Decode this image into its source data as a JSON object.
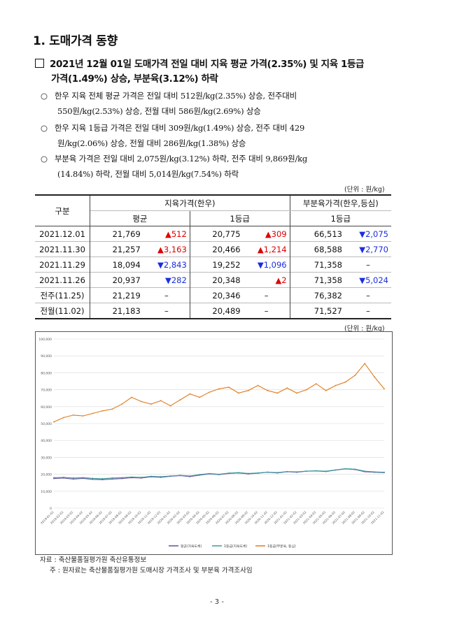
{
  "section_title": "1. 도매가격 동향",
  "headline": {
    "line1": "2021년 12월 01일 도매가격 전일 대비 지육 평균 가격(2.35%) 및 지육 1등급",
    "line2": "가격(1.49%) 상승, 부분육(3.12%) 하락"
  },
  "bullets": [
    {
      "mark": "○",
      "line1": "한우 지육 전체 평균 가격은 전일 대비 512원/kg(2.35%) 상승, 전주대비",
      "line2": "550원/kg(2.53%) 상승, 전월 대비 586원/kg(2.69%) 상승"
    },
    {
      "mark": "○",
      "line1": "한우 지육 1등급 가격은 전일 대비 309원/kg(1.49%) 상승, 전주 대비 429",
      "line2": "원/kg(2.06%) 상승, 전월 대비 286원/kg(1.38%) 상승"
    },
    {
      "mark": "○",
      "line1": "부분육 가격은 전일 대비 2,075원/kg(3.12%) 하락, 전주 대비 9,869원/kg",
      "line2": "(14.84%) 하락, 전월 대비 5,014원/kg(7.54%) 하락"
    }
  ],
  "table_unit": "(단위 : 원/kg)",
  "table": {
    "col_group": "구분",
    "group1": "지육가격(한우)",
    "group2": "부분육가격(한우,등심)",
    "sub1": "평균",
    "sub2": "1등급",
    "sub3": "1등급",
    "rows": [
      {
        "label": "2021.12.01",
        "avg": "21,769",
        "avg_chg": "▲512",
        "avg_dir": "up",
        "g1": "20,775",
        "g1_chg": "▲309",
        "g1_dir": "up",
        "part": "66,513",
        "part_chg": "▼2,075",
        "part_dir": "dn"
      },
      {
        "label": "2021.11.30",
        "avg": "21,257",
        "avg_chg": "▲3,163",
        "avg_dir": "up",
        "g1": "20,466",
        "g1_chg": "▲1,214",
        "g1_dir": "up",
        "part": "68,588",
        "part_chg": "▼2,770",
        "part_dir": "dn"
      },
      {
        "label": "2021.11.29",
        "avg": "18,094",
        "avg_chg": "▼2,843",
        "avg_dir": "dn",
        "g1": "19,252",
        "g1_chg": "▼1,096",
        "g1_dir": "dn",
        "part": "71,358",
        "part_chg": "–",
        "part_dir": "none"
      },
      {
        "label": "2021.11.26",
        "avg": "20,937",
        "avg_chg": "▼282",
        "avg_dir": "dn",
        "g1": "20,348",
        "g1_chg": "▲2",
        "g1_dir": "up",
        "part": "71,358",
        "part_chg": "▼5,024",
        "part_dir": "dn"
      },
      {
        "label": "전주(11.25)",
        "avg": "21,219",
        "avg_chg": "–",
        "avg_dir": "none",
        "g1": "20,346",
        "g1_chg": "–",
        "g1_dir": "none",
        "part": "76,382",
        "part_chg": "–",
        "part_dir": "none"
      },
      {
        "label": "전월(11.02)",
        "avg": "21,183",
        "avg_chg": "–",
        "avg_dir": "none",
        "g1": "20,489",
        "g1_chg": "–",
        "g1_dir": "none",
        "part": "71,527",
        "part_chg": "–",
        "part_dir": "none"
      }
    ]
  },
  "chart_unit": "(단위 : 원/kg)",
  "chart_data": {
    "type": "line",
    "ylim": [
      0,
      100000
    ],
    "yticks": [
      "0",
      "10,000",
      "20,000",
      "30,000",
      "40,000",
      "50,000",
      "60,000",
      "70,000",
      "80,000",
      "90,000",
      "100,000"
    ],
    "xticks": [
      "2019-01-02",
      "2019-02-02",
      "2019-03-02",
      "2019-04-02",
      "2019-05-02",
      "2019-06-02",
      "2019-07-02",
      "2019-08-02",
      "2019-09-02",
      "2019-10-02",
      "2019-11-02",
      "2019-12-02",
      "2020-01-02",
      "2020-02-02",
      "2020-03-02",
      "2020-04-02",
      "2020-05-02",
      "2020-06-02",
      "2020-07-02",
      "2020-08-02",
      "2020-09-02",
      "2020-10-02",
      "2020-11-02",
      "2020-12-02",
      "2021-01-02",
      "2021-02-02",
      "2021-03-02",
      "2021-04-02",
      "2021-05-02",
      "2021-06-02",
      "2021-07-02",
      "2021-08-02",
      "2021-09-02",
      "2021-10-02",
      "2021-11-02"
    ],
    "grid": true,
    "legend_position": "bottom",
    "series": [
      {
        "name": "평균(지육도체)",
        "color": "#6a4c9c",
        "values": [
          17500,
          17800,
          17200,
          17600,
          17000,
          16800,
          17200,
          17500,
          18000,
          17800,
          18500,
          18200,
          18800,
          19200,
          18600,
          19500,
          20200,
          19800,
          20500,
          20800,
          20200,
          20600,
          21200,
          20800,
          21500,
          21200,
          21800,
          22000,
          21600,
          22500,
          23200,
          22800,
          21500,
          21200,
          21000
        ]
      },
      {
        "name": "1등급(지육도체)",
        "color": "#3c9c9c",
        "values": [
          18000,
          18200,
          17800,
          18000,
          17600,
          17400,
          17800,
          18000,
          18400,
          18200,
          18800,
          18600,
          19000,
          19400,
          19000,
          19800,
          20400,
          20000,
          20700,
          21000,
          20500,
          20800,
          21300,
          21000,
          21600,
          21400,
          21900,
          22100,
          21800,
          22600,
          23300,
          23000,
          21800,
          21400,
          21200
        ]
      },
      {
        "name": "1등급(부분육, 등심)",
        "color": "#e07b1f",
        "values": [
          51000,
          53500,
          55000,
          54500,
          56000,
          57500,
          58500,
          61500,
          65500,
          63000,
          61500,
          63500,
          60500,
          64000,
          67500,
          65500,
          68500,
          70500,
          71500,
          68000,
          69500,
          72500,
          69500,
          68000,
          71000,
          68000,
          70000,
          73500,
          69500,
          72500,
          74500,
          78500,
          85500,
          77500,
          70500
        ]
      }
    ]
  },
  "source_note": "자료 : 축산물품질평가원 축산유통정보",
  "footnote": "주 : 원자료는 축산물품질평가원 도매시장 가격조사 및 부분육 가격조사임",
  "page_number": "- 3 -"
}
